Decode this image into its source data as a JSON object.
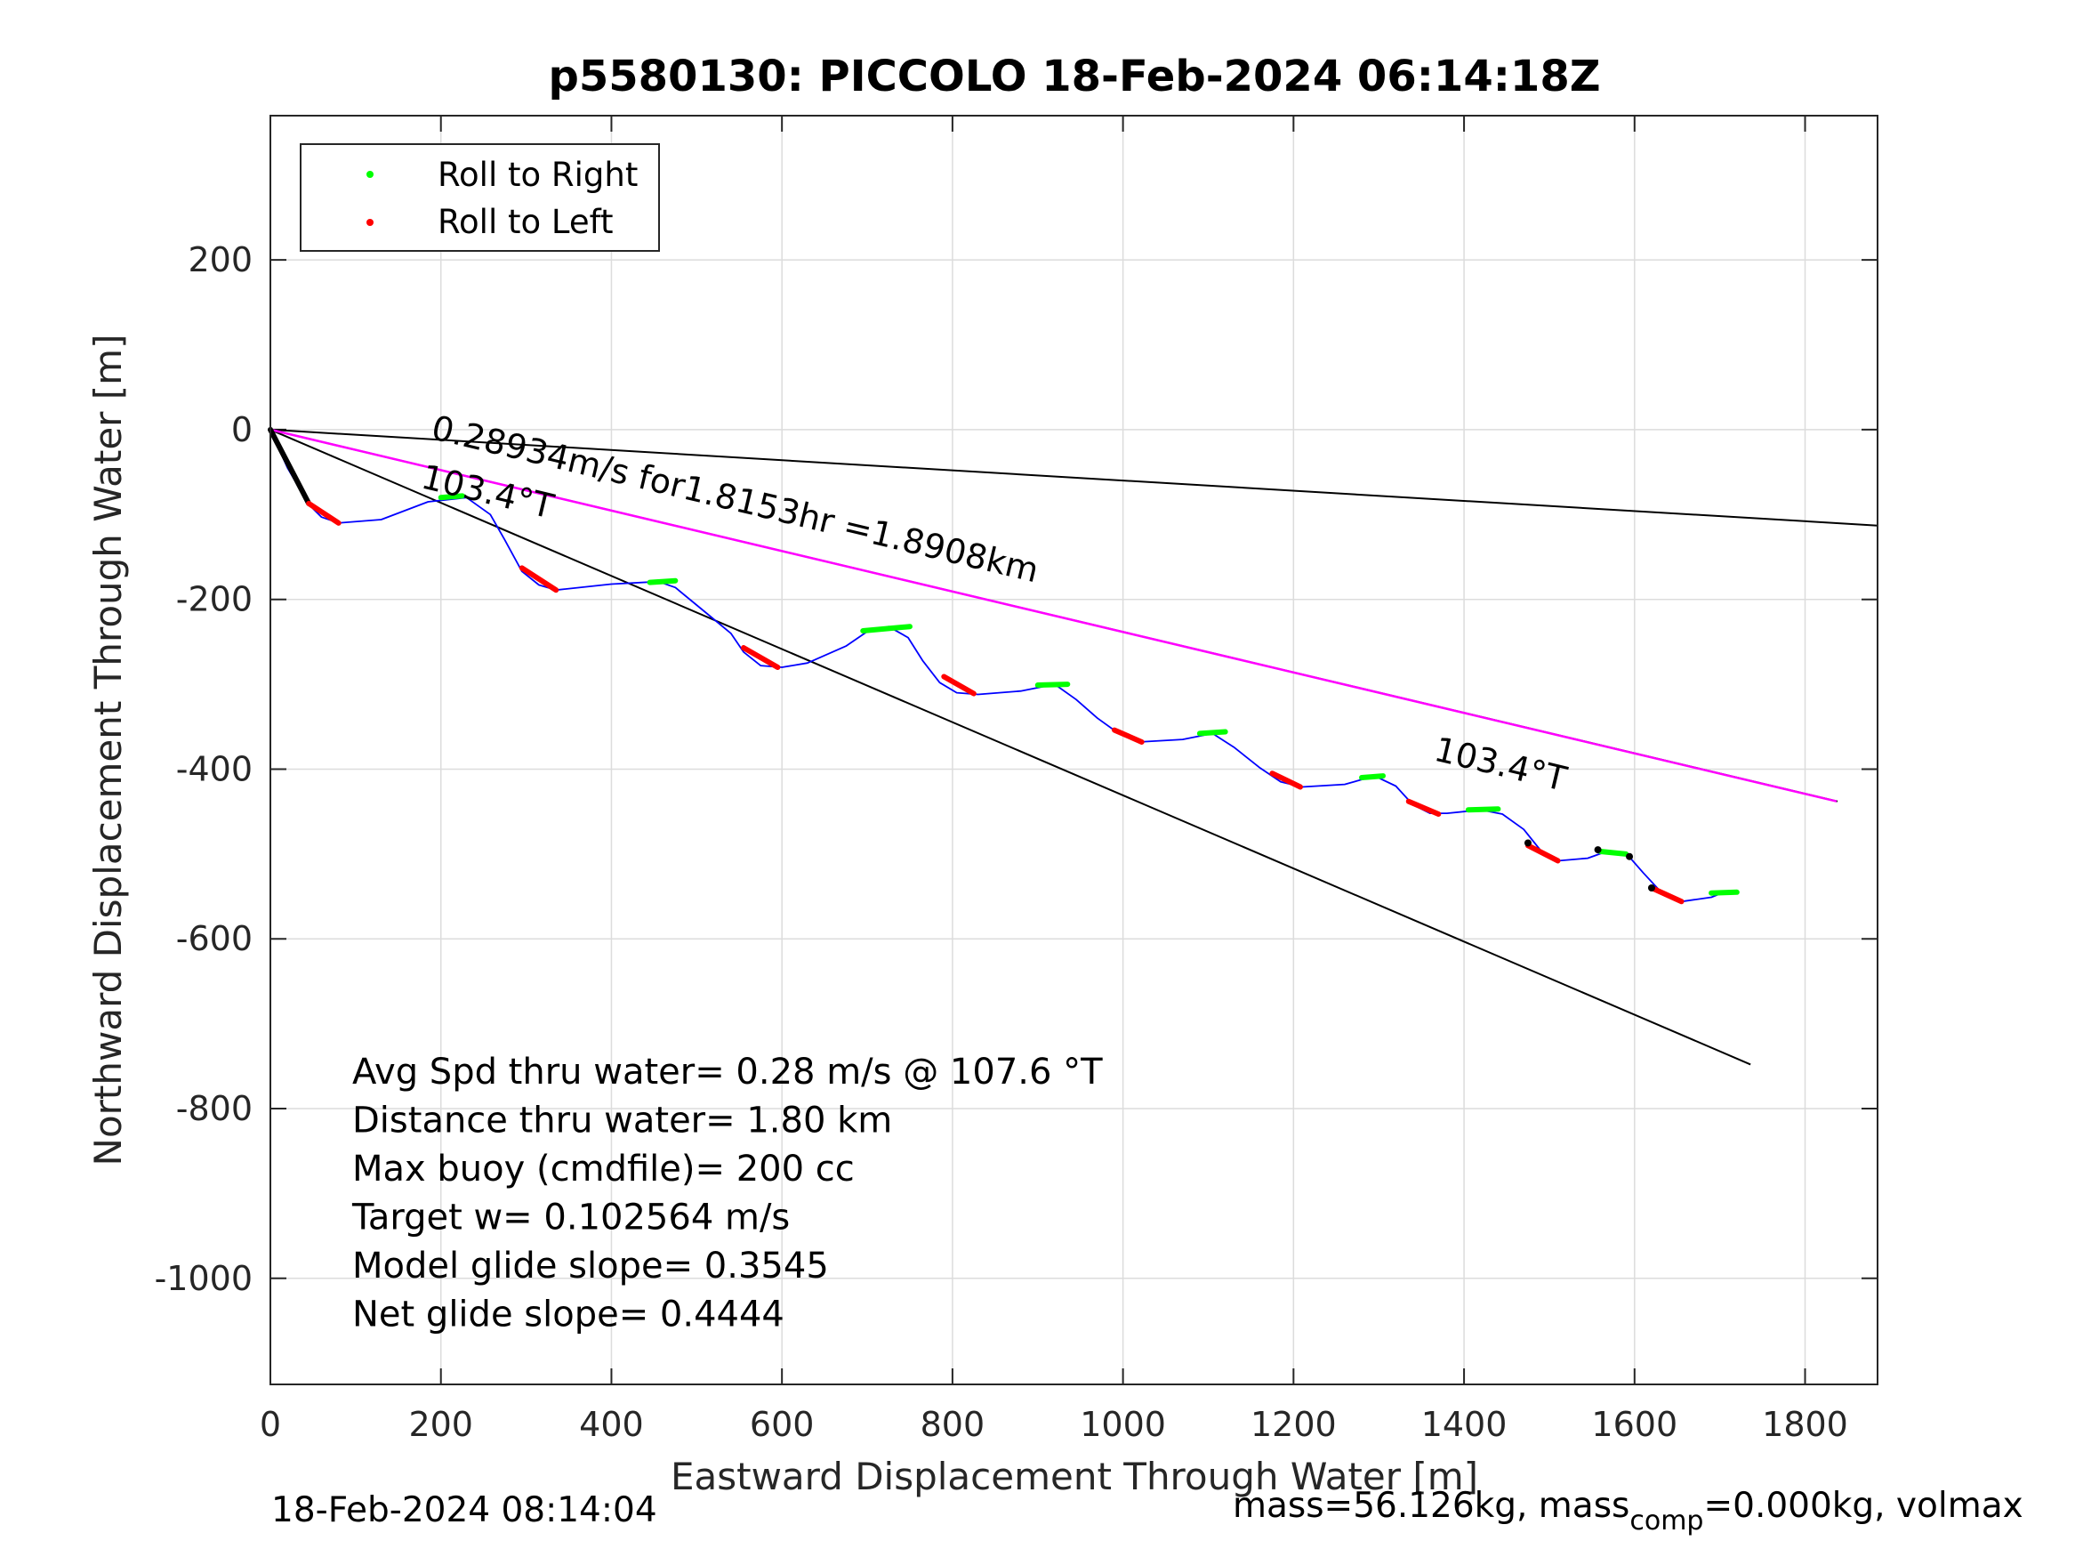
{
  "chart_data": {
    "type": "scatter",
    "title": "p5580130: PICCOLO 18-Feb-2024 06:14:18Z",
    "xlabel": "Eastward Displacement Through Water [m]",
    "ylabel": "Northward Displacement Through Water [m]",
    "xlim": [
      0,
      1885
    ],
    "ylim": [
      -1125,
      370
    ],
    "xticks": [
      0,
      200,
      400,
      600,
      800,
      1000,
      1200,
      1400,
      1600,
      1800
    ],
    "yticks": [
      200,
      0,
      -200,
      -400,
      -600,
      -800,
      -1000
    ],
    "grid": true,
    "legend_position": "top-left",
    "legend": [
      {
        "label": "Roll to Right",
        "color": "#00ff00"
      },
      {
        "label": "Roll to Left",
        "color": "#ff0000"
      }
    ],
    "colors": {
      "track": "#0000ff",
      "heading_line": "#000000",
      "speed_line": "#ff00ff",
      "right": "#00ff00",
      "left": "#ff0000"
    },
    "series": [
      {
        "type": "line",
        "color": "#0000ff",
        "x": [
          0,
          20,
          45,
          60,
          80,
          130,
          185,
          230,
          258,
          275,
          295,
          315,
          335,
          400,
          455,
          475,
          510,
          540,
          555,
          575,
          600,
          630,
          675,
          700,
          725,
          748,
          765,
          785,
          805,
          830,
          880,
          920,
          945,
          970,
          995,
          1020,
          1070,
          1105,
          1130,
          1160,
          1185,
          1210,
          1260,
          1295,
          1320,
          1340,
          1360,
          1380,
          1420,
          1445,
          1470,
          1490,
          1510,
          1545,
          1570,
          1590,
          1610,
          1635,
          1655,
          1690,
          1705,
          1715
        ],
        "y": [
          0,
          -45,
          -88,
          -103,
          -110,
          -106,
          -85,
          -80,
          -100,
          -130,
          -167,
          -183,
          -189,
          -182,
          -179,
          -186,
          -215,
          -240,
          -262,
          -278,
          -280,
          -275,
          -255,
          -238,
          -232,
          -245,
          -272,
          -298,
          -310,
          -312,
          -308,
          -300,
          -318,
          -340,
          -358,
          -368,
          -365,
          -358,
          -374,
          -398,
          -415,
          -421,
          -418,
          -408,
          -420,
          -442,
          -452,
          -452,
          -448,
          -453,
          -471,
          -496,
          -508,
          -505,
          -496,
          -499,
          -522,
          -549,
          -556,
          -551,
          -545,
          -546
        ]
      },
      {
        "type": "line",
        "color": "#ff00ff",
        "x": [
          0,
          1837
        ],
        "y": [
          0,
          -438
        ]
      }
    ],
    "heading_lines": [
      {
        "x": [
          0,
          1885
        ],
        "y": [
          0,
          -113
        ],
        "color": "#000000"
      },
      {
        "x": [
          0,
          1838
        ],
        "y": [
          0,
          -438
        ],
        "color": "#000000"
      },
      {
        "x": [
          0,
          1736
        ],
        "y": [
          0,
          -748
        ],
        "color": "#000000"
      }
    ],
    "roll_left_segments": [
      {
        "x": [
          45,
          80
        ],
        "y": [
          -87,
          -110
        ]
      },
      {
        "x": [
          295,
          335
        ],
        "y": [
          -163,
          -189
        ]
      },
      {
        "x": [
          555,
          595
        ],
        "y": [
          -257,
          -280
        ]
      },
      {
        "x": [
          790,
          825
        ],
        "y": [
          -291,
          -311
        ]
      },
      {
        "x": [
          990,
          1022
        ],
        "y": [
          -354,
          -368
        ]
      },
      {
        "x": [
          1175,
          1208
        ],
        "y": [
          -405,
          -421
        ]
      },
      {
        "x": [
          1335,
          1370
        ],
        "y": [
          -438,
          -453
        ]
      },
      {
        "x": [
          1475,
          1510
        ],
        "y": [
          -490,
          -508
        ]
      },
      {
        "x": [
          1620,
          1655
        ],
        "y": [
          -540,
          -556
        ]
      }
    ],
    "roll_right_segments": [
      {
        "x": [
          200,
          225
        ],
        "y": [
          -80,
          -78
        ]
      },
      {
        "x": [
          445,
          475
        ],
        "y": [
          -180,
          -178
        ]
      },
      {
        "x": [
          695,
          750
        ],
        "y": [
          -237,
          -232
        ]
      },
      {
        "x": [
          900,
          935
        ],
        "y": [
          -301,
          -300
        ]
      },
      {
        "x": [
          1090,
          1120
        ],
        "y": [
          -358,
          -356
        ]
      },
      {
        "x": [
          1280,
          1305
        ],
        "y": [
          -410,
          -408
        ]
      },
      {
        "x": [
          1405,
          1440
        ],
        "y": [
          -448,
          -447
        ]
      },
      {
        "x": [
          1560,
          1590
        ],
        "y": [
          -497,
          -500
        ]
      },
      {
        "x": [
          1690,
          1720
        ],
        "y": [
          -546,
          -545
        ]
      }
    ],
    "black_points": [
      {
        "x": 1475,
        "y": -487
      },
      {
        "x": 1557,
        "y": -495
      },
      {
        "x": 1594,
        "y": -503
      },
      {
        "x": 1620,
        "y": -540
      }
    ],
    "annotations": [
      {
        "text": "0.28934m/s for1.8153hr =1.8908km",
        "x": 187,
        "y": -10,
        "angle_deg": 13.4
      },
      {
        "text": "103.4°T",
        "x": 175,
        "y": -68,
        "angle_deg": 13.4
      },
      {
        "text": "103.4°T",
        "x": 1363,
        "y": -389,
        "angle_deg": 13.4
      }
    ],
    "stats": [
      "Avg Spd thru water=  0.28 m/s @ 107.6 °T",
      "Distance thru water=  1.80 km",
      "Max buoy (cmdfile)= 200 cc",
      "Target w= 0.102564 m/s",
      "Model glide slope= 0.3545",
      "Net glide slope= 0.4444"
    ]
  },
  "footer": {
    "left": "18-Feb-2024 08:14:04",
    "right_prefix": "mass=56.126kg, mass",
    "right_sub": "comp",
    "right_suffix": "=0.000kg, volmax"
  }
}
